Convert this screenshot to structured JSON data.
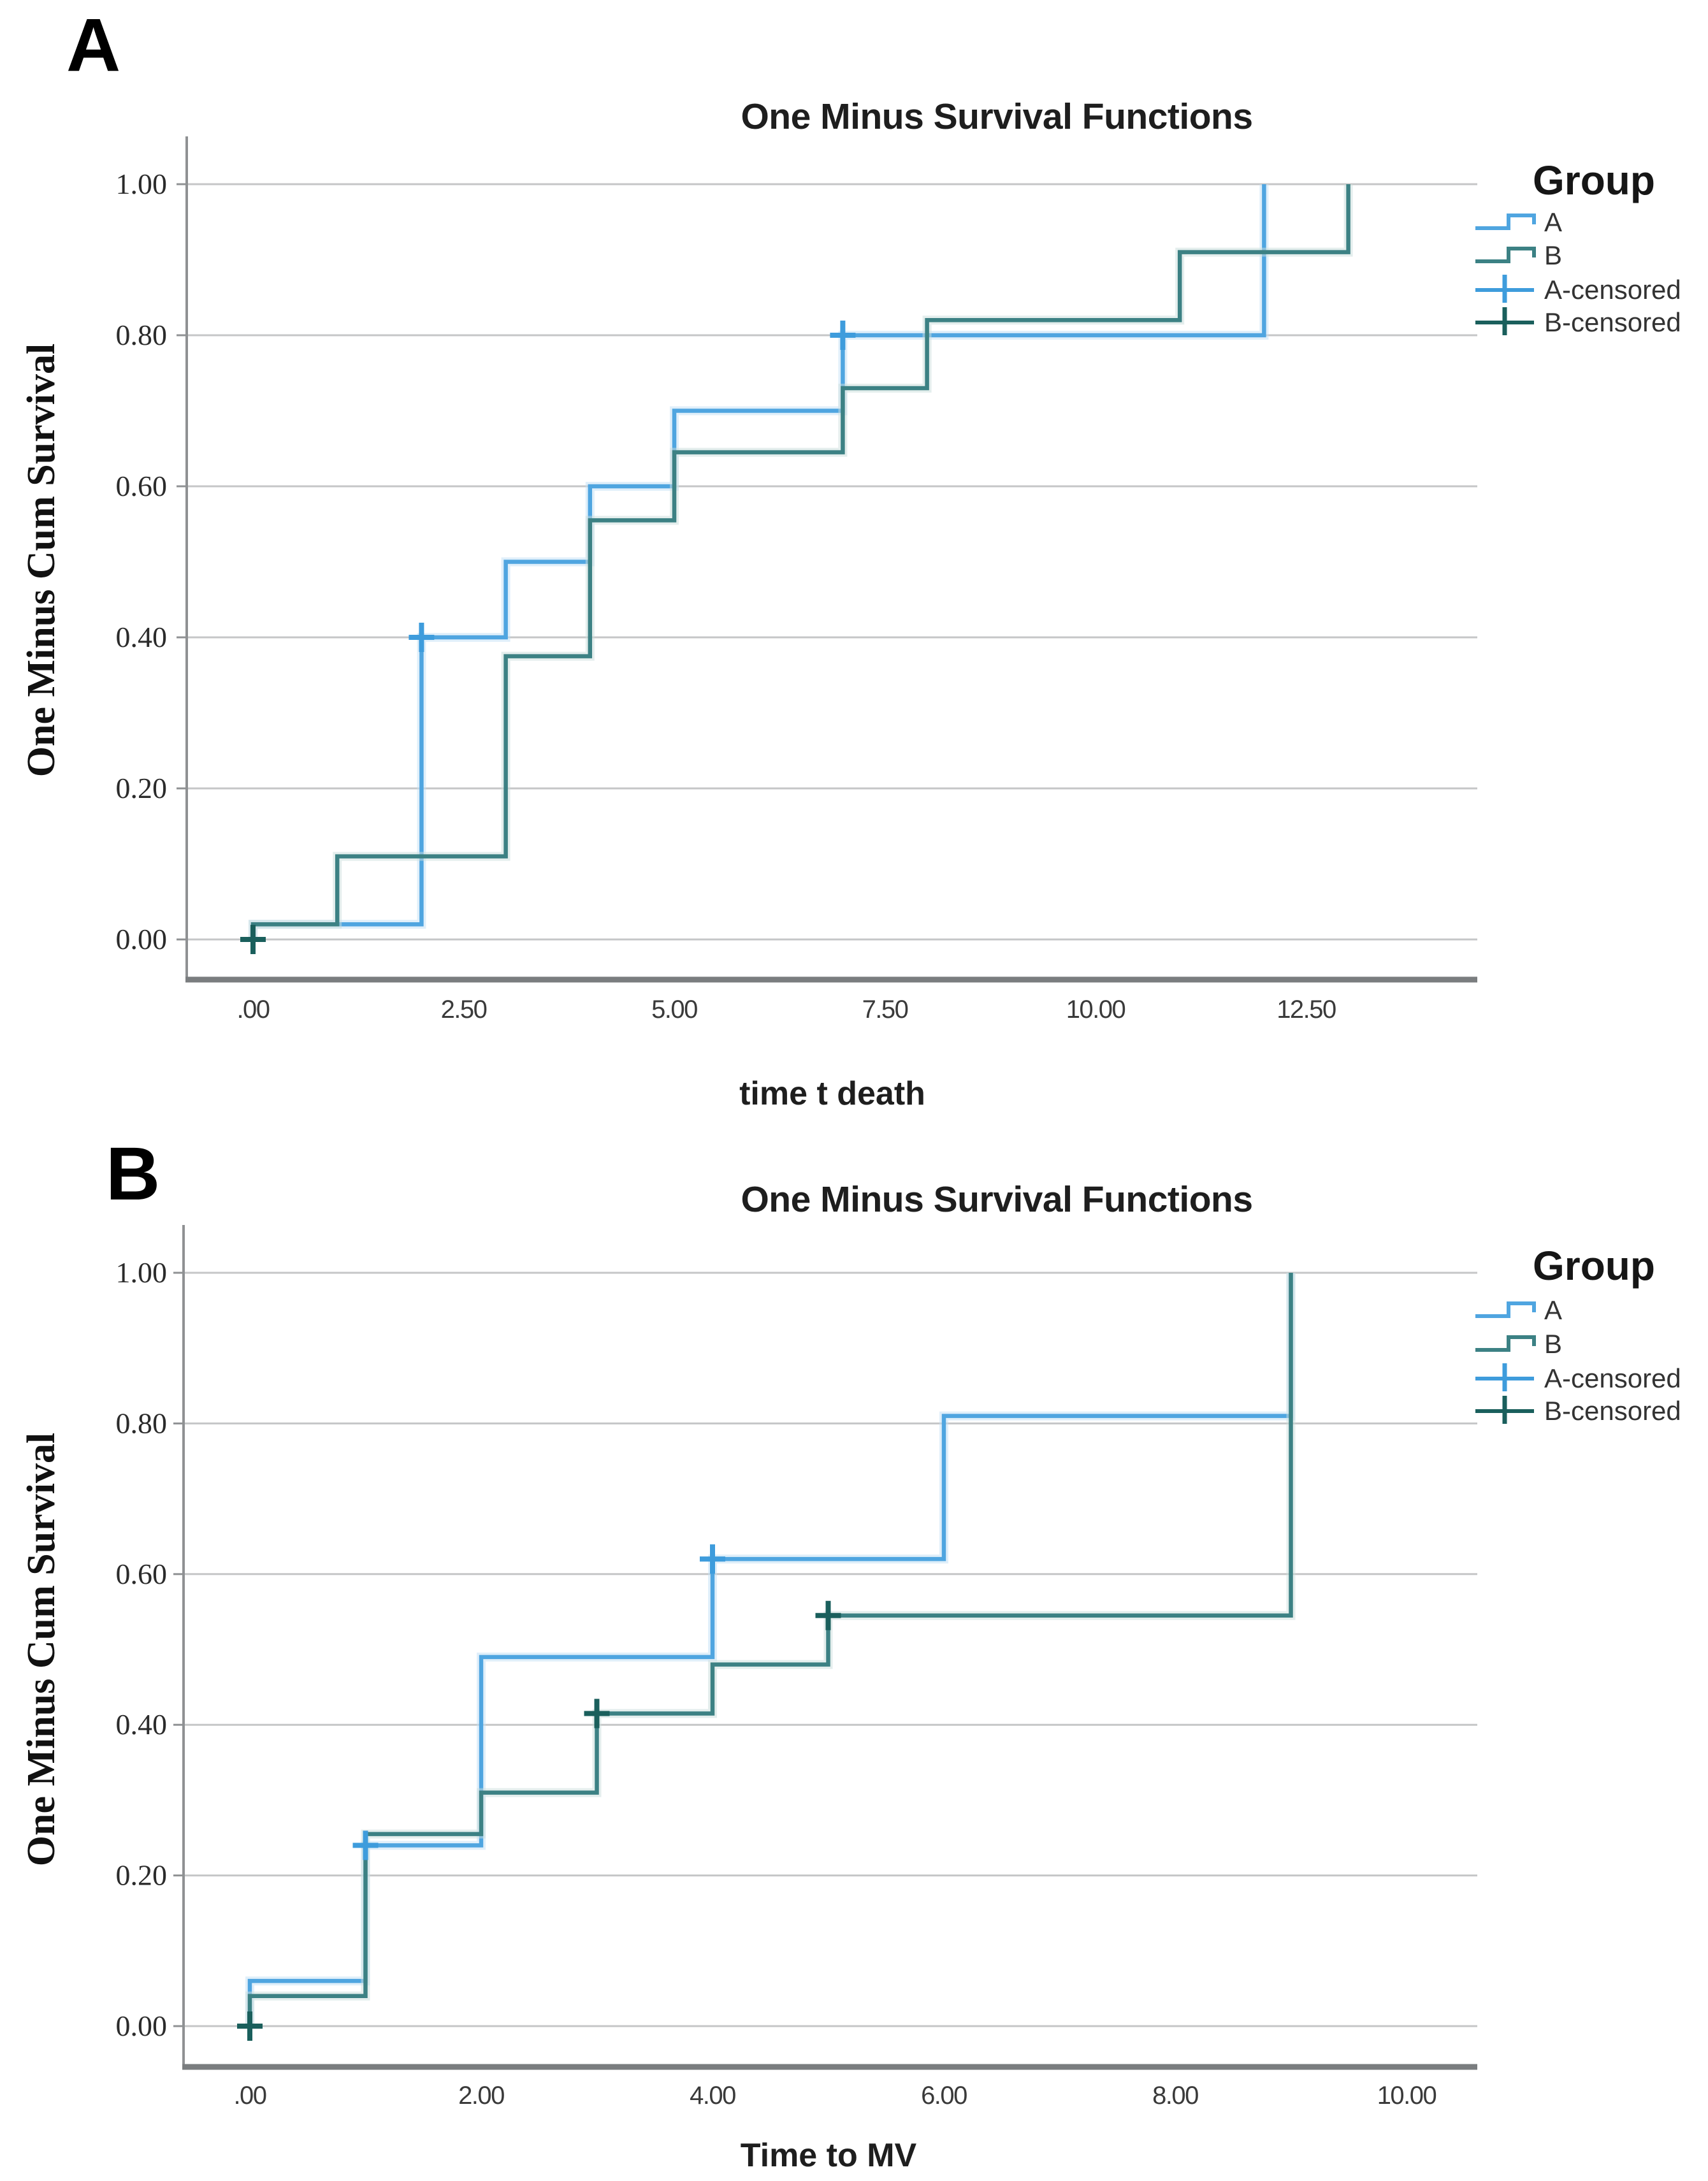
{
  "chart_data": {
    "type": "step",
    "description": "Two SPSS one-minus-survival (cumulative incidence) step plots",
    "colors": {
      "series_a_blue": "#4FA5E0",
      "series_b_teal": "#3C8184",
      "censored_a_blue": "#3E9CDC",
      "censored_b_teal": "#1A5F5C",
      "gridline": "#C5C6C7",
      "y_axis_line": "#8F9193",
      "x_axis_line": "#7A7D7F",
      "tick_text": "#3A3A3A"
    },
    "panels": [
      {
        "panel_label": "A",
        "title": "One Minus Survival Functions",
        "x_axis": {
          "label": "time t death",
          "tick_labels": [
            ".00",
            "2.50",
            "5.00",
            "7.50",
            "10.00",
            "12.50"
          ],
          "tick_values": [
            0,
            2.5,
            5,
            7.5,
            10,
            12.5
          ],
          "range_shown": [
            -0.79,
            14.53
          ]
        },
        "y_axis": {
          "label": "One Minus Cum Survival",
          "tick_labels": [
            "0.00",
            "0.20",
            "0.40",
            "0.60",
            "0.80",
            "1.00"
          ],
          "tick_values": [
            0,
            0.2,
            0.4,
            0.6,
            0.8,
            1.0
          ],
          "range_shown": [
            -0.05,
            1.06
          ]
        },
        "legend": {
          "title": "Group",
          "entries": [
            {
              "label": "A",
              "glyph": "step",
              "color": "#4FA5E0"
            },
            {
              "label": "B",
              "glyph": "step",
              "color": "#3C8184"
            },
            {
              "label": "A-censored",
              "glyph": "plus",
              "color": "#3E9CDC"
            },
            {
              "label": "B-censored",
              "glyph": "plus",
              "color": "#1A5F5C"
            }
          ]
        },
        "series": [
          {
            "name": "A",
            "color": "#4FA5E0",
            "halo": "#C2E0F5",
            "steps": [
              [
                0,
                0.02
              ],
              [
                2,
                0.4
              ],
              [
                3,
                0.5
              ],
              [
                4,
                0.6
              ],
              [
                5,
                0.7
              ],
              [
                7,
                0.8
              ],
              [
                12,
                1.0
              ]
            ]
          },
          {
            "name": "B",
            "color": "#3C8184",
            "halo": "#C9DDDB",
            "steps": [
              [
                0,
                0.02
              ],
              [
                1,
                0.11
              ],
              [
                3,
                0.375
              ],
              [
                4,
                0.555
              ],
              [
                5,
                0.645
              ],
              [
                7,
                0.73
              ],
              [
                8,
                0.82
              ],
              [
                11,
                0.91
              ],
              [
                13,
                1.0
              ]
            ]
          }
        ],
        "censored_points": [
          {
            "series": "A",
            "x": 2,
            "y": 0.4,
            "color": "#3E9CDC"
          },
          {
            "series": "A",
            "x": 7,
            "y": 0.8,
            "color": "#3E9CDC"
          },
          {
            "series": "B",
            "x": 0,
            "y": 0.0,
            "color": "#1A5F5C"
          }
        ]
      },
      {
        "panel_label": "B",
        "title": "One Minus Survival Functions",
        "x_axis": {
          "label": "Time to MV",
          "tick_labels": [
            ".00",
            "2.00",
            "4.00",
            "6.00",
            "8.00",
            "10.00"
          ],
          "tick_values": [
            0,
            2,
            4,
            6,
            8,
            10
          ],
          "range_shown": [
            -0.57,
            10.61
          ]
        },
        "y_axis": {
          "label": "One Minus Cum Survival",
          "tick_labels": [
            "0.00",
            "0.20",
            "0.40",
            "0.60",
            "0.80",
            "1.00"
          ],
          "tick_values": [
            0,
            0.2,
            0.4,
            0.6,
            0.8,
            1.0
          ],
          "range_shown": [
            -0.05,
            1.06
          ]
        },
        "legend": {
          "title": "Group",
          "entries": [
            {
              "label": "A",
              "glyph": "step",
              "color": "#4FA5E0"
            },
            {
              "label": "B",
              "glyph": "step",
              "color": "#3C8184"
            },
            {
              "label": "A-censored",
              "glyph": "plus",
              "color": "#3E9CDC"
            },
            {
              "label": "B-censored",
              "glyph": "plus",
              "color": "#1A5F5C"
            }
          ]
        },
        "series": [
          {
            "name": "A",
            "color": "#4FA5E0",
            "halo": "#C2E0F5",
            "steps": [
              [
                0,
                0.06
              ],
              [
                1,
                0.24
              ],
              [
                2,
                0.49
              ],
              [
                4,
                0.62
              ],
              [
                6,
                0.81
              ],
              [
                9,
                1.0
              ]
            ]
          },
          {
            "name": "B",
            "color": "#3C8184",
            "halo": "#C9DDDB",
            "steps": [
              [
                0,
                0.04
              ],
              [
                1,
                0.255
              ],
              [
                2,
                0.31
              ],
              [
                3,
                0.415
              ],
              [
                4,
                0.48
              ],
              [
                5,
                0.545
              ],
              [
                9,
                1.0
              ]
            ]
          }
        ],
        "censored_points": [
          {
            "series": "A",
            "x": 1,
            "y": 0.24,
            "color": "#3E9CDC"
          },
          {
            "series": "A",
            "x": 4,
            "y": 0.62,
            "color": "#3E9CDC"
          },
          {
            "series": "B",
            "x": 0,
            "y": 0.0,
            "color": "#1A5F5C"
          },
          {
            "series": "B",
            "x": 3,
            "y": 0.415,
            "color": "#1A5F5C"
          },
          {
            "series": "B",
            "x": 5,
            "y": 0.545,
            "color": "#1A5F5C"
          }
        ]
      }
    ]
  }
}
